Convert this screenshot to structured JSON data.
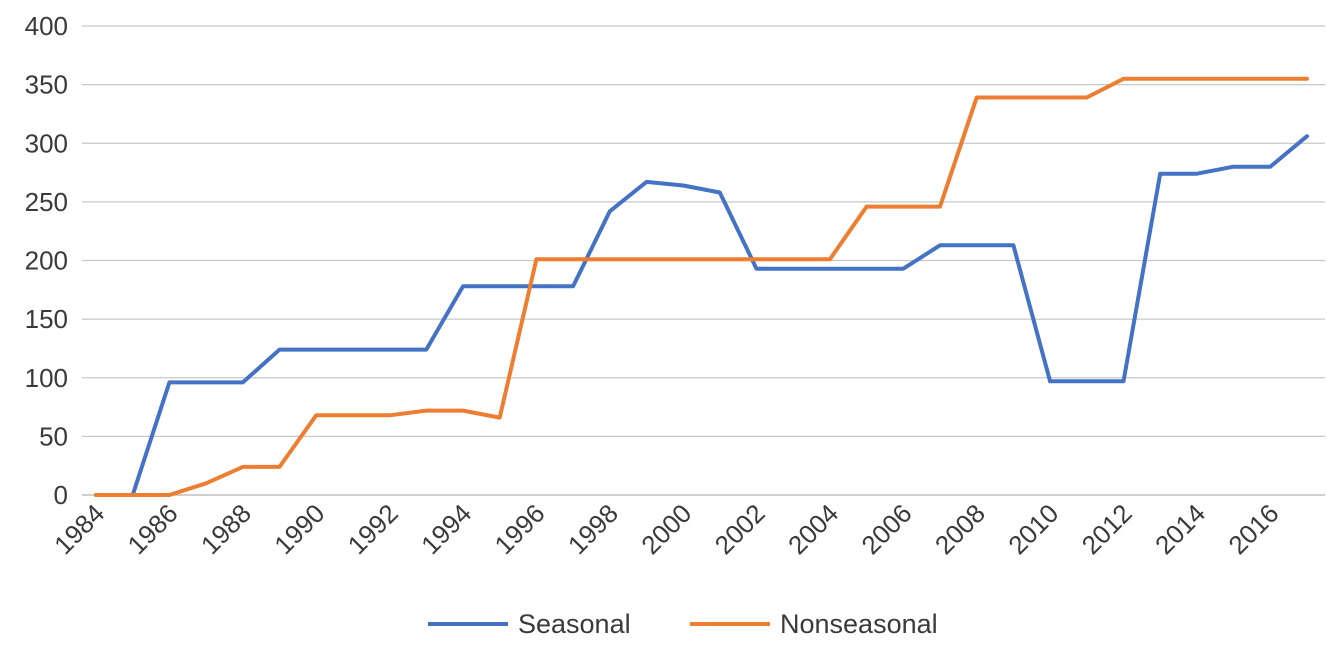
{
  "chart_data": {
    "type": "line",
    "title": "",
    "xlabel": "",
    "ylabel": "",
    "ylim": [
      0,
      400
    ],
    "yticks": [
      "0",
      "50",
      "100",
      "150",
      "200",
      "250",
      "300",
      "350",
      "400"
    ],
    "xticks": [
      "1984",
      "1986",
      "1988",
      "1990",
      "1992",
      "1994",
      "1996",
      "1998",
      "2000",
      "2002",
      "2004",
      "2006",
      "2008",
      "2010",
      "2012",
      "2014",
      "2016"
    ],
    "x": [
      1984,
      1985,
      1986,
      1987,
      1988,
      1989,
      1990,
      1991,
      1992,
      1993,
      1994,
      1995,
      1996,
      1997,
      1998,
      1999,
      2000,
      2001,
      2002,
      2003,
      2004,
      2005,
      2006,
      2007,
      2008,
      2009,
      2010,
      2011,
      2012,
      2013,
      2014,
      2015,
      2016,
      2017
    ],
    "grid": true,
    "legend_position": "bottom",
    "series": [
      {
        "name": "Seasonal",
        "color": "#4472c4",
        "values": [
          0,
          0,
          96,
          96,
          96,
          124,
          124,
          124,
          124,
          124,
          178,
          178,
          178,
          178,
          242,
          267,
          264,
          258,
          193,
          193,
          193,
          193,
          193,
          213,
          213,
          213,
          97,
          97,
          97,
          274,
          274,
          280,
          280,
          306
        ]
      },
      {
        "name": "Nonseasonal",
        "color": "#ed7d31",
        "values": [
          0,
          0,
          0,
          10,
          24,
          24,
          68,
          68,
          68,
          72,
          72,
          66,
          201,
          201,
          201,
          201,
          201,
          201,
          201,
          201,
          201,
          246,
          246,
          246,
          339,
          339,
          339,
          339,
          355,
          355,
          355,
          355,
          355,
          355
        ]
      }
    ]
  }
}
